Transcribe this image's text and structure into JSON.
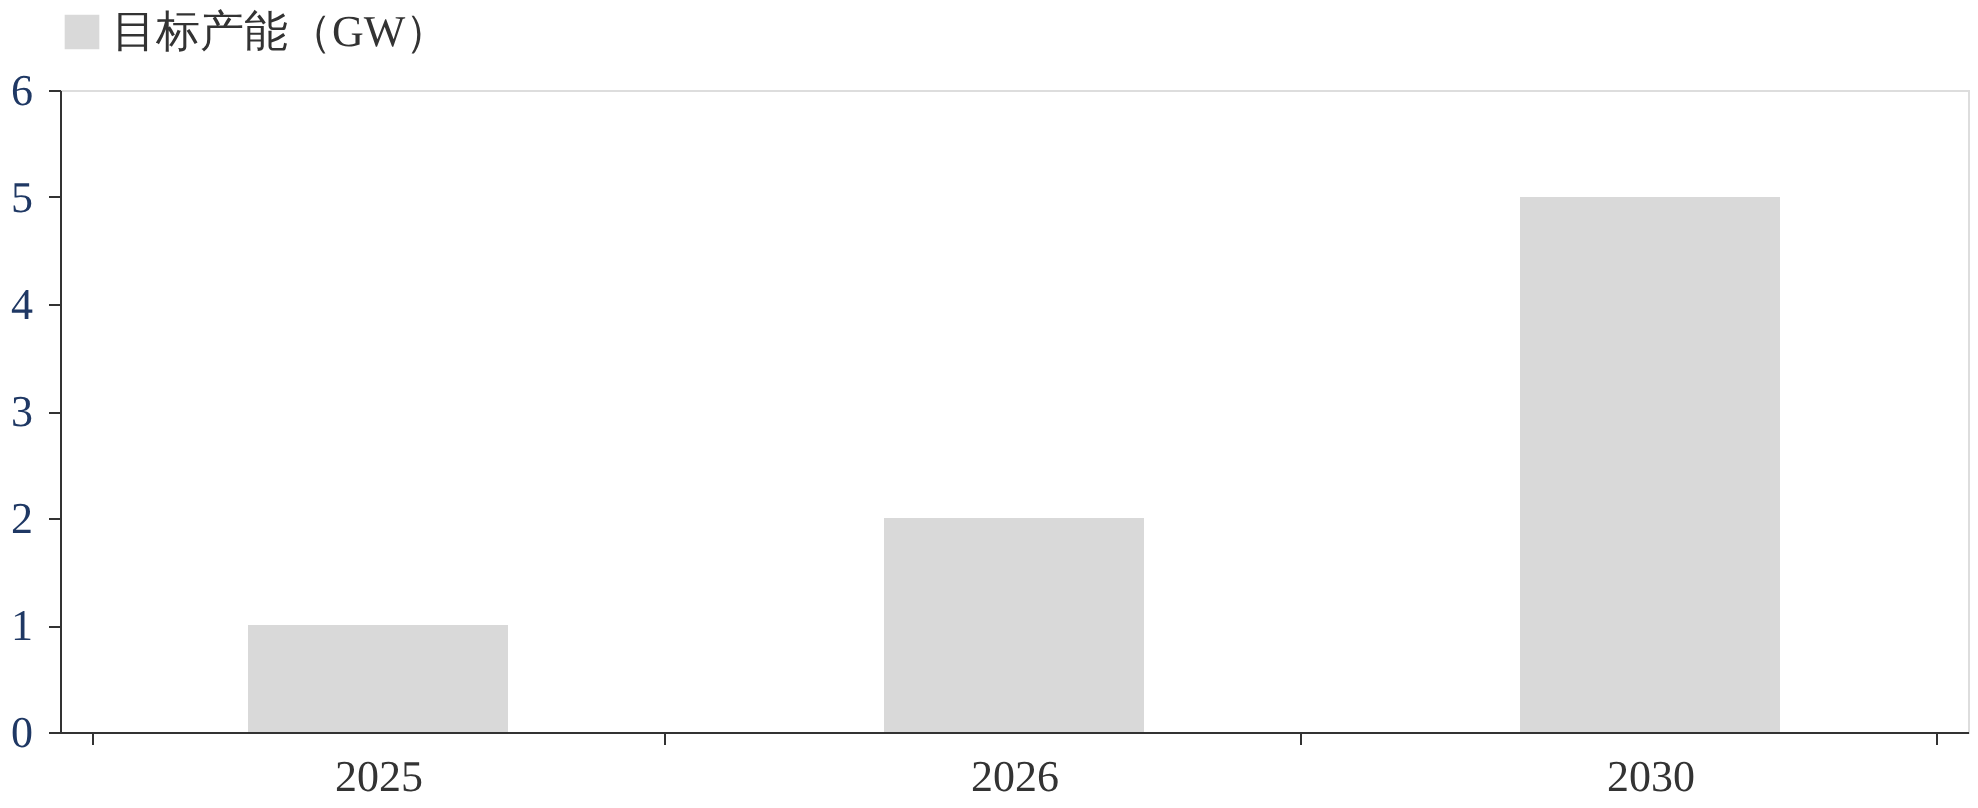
{
  "chart_data": {
    "type": "bar",
    "categories": [
      "2025",
      "2026",
      "2030"
    ],
    "series": [
      {
        "name": "目标产能（GW）",
        "color": "#d9d9d9",
        "values": [
          1,
          2,
          5
        ]
      }
    ],
    "ylim": [
      0,
      6
    ],
    "yticks": [
      0,
      1,
      2,
      3,
      4,
      5,
      6
    ],
    "grid": false,
    "legend": "top"
  }
}
